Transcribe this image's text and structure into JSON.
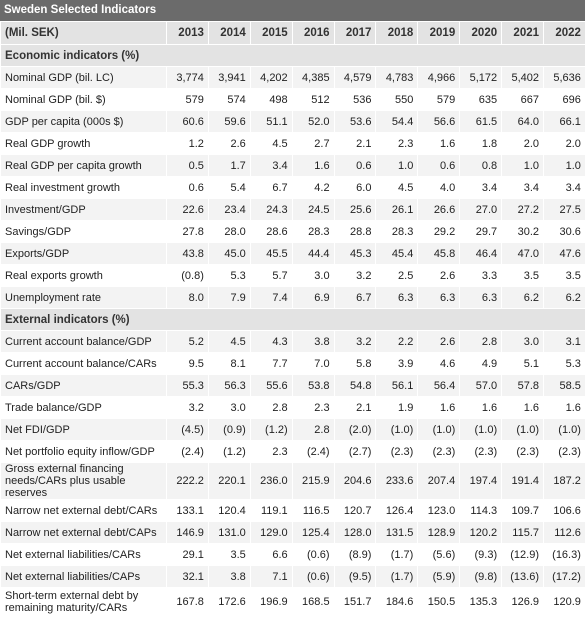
{
  "title": "Sweden Selected Indicators",
  "unit": "(Mil. SEK)",
  "years": [
    "2013",
    "2014",
    "2015",
    "2016",
    "2017",
    "2018",
    "2019",
    "2020",
    "2021",
    "2022"
  ],
  "sections": [
    {
      "name": "Economic indicators (%)",
      "rows": [
        {
          "label": "Nominal GDP (bil. LC)",
          "values": [
            "3,774",
            "3,941",
            "4,202",
            "4,385",
            "4,579",
            "4,783",
            "4,966",
            "5,172",
            "5,402",
            "5,636"
          ]
        },
        {
          "label": "Nominal GDP (bil. $)",
          "values": [
            "579",
            "574",
            "498",
            "512",
            "536",
            "550",
            "579",
            "635",
            "667",
            "696"
          ]
        },
        {
          "label": "GDP per capita (000s $)",
          "values": [
            "60.6",
            "59.6",
            "51.1",
            "52.0",
            "53.6",
            "54.4",
            "56.6",
            "61.5",
            "64.0",
            "66.1"
          ]
        },
        {
          "label": "Real GDP growth",
          "values": [
            "1.2",
            "2.6",
            "4.5",
            "2.7",
            "2.1",
            "2.3",
            "1.6",
            "1.8",
            "2.0",
            "2.0"
          ]
        },
        {
          "label": "Real GDP per capita growth",
          "values": [
            "0.5",
            "1.7",
            "3.4",
            "1.6",
            "0.6",
            "1.0",
            "0.6",
            "0.8",
            "1.0",
            "1.0"
          ]
        },
        {
          "label": "Real investment growth",
          "values": [
            "0.6",
            "5.4",
            "6.7",
            "4.2",
            "6.0",
            "4.5",
            "4.0",
            "3.4",
            "3.4",
            "3.4"
          ]
        },
        {
          "label": "Investment/GDP",
          "values": [
            "22.6",
            "23.4",
            "24.3",
            "24.5",
            "25.6",
            "26.1",
            "26.6",
            "27.0",
            "27.2",
            "27.5"
          ]
        },
        {
          "label": "Savings/GDP",
          "values": [
            "27.8",
            "28.0",
            "28.6",
            "28.3",
            "28.8",
            "28.3",
            "29.2",
            "29.7",
            "30.2",
            "30.6"
          ]
        },
        {
          "label": "Exports/GDP",
          "values": [
            "43.8",
            "45.0",
            "45.5",
            "44.4",
            "45.3",
            "45.4",
            "45.8",
            "46.4",
            "47.0",
            "47.6"
          ]
        },
        {
          "label": "Real exports growth",
          "values": [
            "(0.8)",
            "5.3",
            "5.7",
            "3.0",
            "3.2",
            "2.5",
            "2.6",
            "3.3",
            "3.5",
            "3.5"
          ]
        },
        {
          "label": "Unemployment rate",
          "values": [
            "8.0",
            "7.9",
            "7.4",
            "6.9",
            "6.7",
            "6.3",
            "6.3",
            "6.3",
            "6.2",
            "6.2"
          ]
        }
      ]
    },
    {
      "name": "External indicators (%)",
      "rows": [
        {
          "label": "Current account balance/GDP",
          "values": [
            "5.2",
            "4.5",
            "4.3",
            "3.8",
            "3.2",
            "2.2",
            "2.6",
            "2.8",
            "3.0",
            "3.1"
          ]
        },
        {
          "label": "Current account balance/CARs",
          "values": [
            "9.5",
            "8.1",
            "7.7",
            "7.0",
            "5.8",
            "3.9",
            "4.6",
            "4.9",
            "5.1",
            "5.3"
          ]
        },
        {
          "label": "CARs/GDP",
          "values": [
            "55.3",
            "56.3",
            "55.6",
            "53.8",
            "54.8",
            "56.1",
            "56.4",
            "57.0",
            "57.8",
            "58.5"
          ]
        },
        {
          "label": "Trade balance/GDP",
          "values": [
            "3.2",
            "3.0",
            "2.8",
            "2.3",
            "2.1",
            "1.9",
            "1.6",
            "1.6",
            "1.6",
            "1.6"
          ]
        },
        {
          "label": "Net FDI/GDP",
          "values": [
            "(4.5)",
            "(0.9)",
            "(1.2)",
            "2.8",
            "(2.0)",
            "(1.0)",
            "(1.0)",
            "(1.0)",
            "(1.0)",
            "(1.0)"
          ]
        },
        {
          "label": "Net portfolio equity inflow/GDP",
          "values": [
            "(2.4)",
            "(1.2)",
            "2.3",
            "(2.4)",
            "(2.7)",
            "(2.3)",
            "(2.3)",
            "(2.3)",
            "(2.3)",
            "(2.3)"
          ]
        },
        {
          "label": "Gross external financing needs/CARs plus usable reserves",
          "tall": true,
          "values": [
            "222.2",
            "220.1",
            "236.0",
            "215.9",
            "204.6",
            "233.6",
            "207.4",
            "197.4",
            "191.4",
            "187.2"
          ]
        },
        {
          "label": "Narrow net external debt/CARs",
          "values": [
            "133.1",
            "120.4",
            "119.1",
            "116.5",
            "120.7",
            "126.4",
            "123.0",
            "114.3",
            "109.7",
            "106.6"
          ]
        },
        {
          "label": "Narrow net external debt/CAPs",
          "values": [
            "146.9",
            "131.0",
            "129.0",
            "125.4",
            "128.0",
            "131.5",
            "128.9",
            "120.2",
            "115.7",
            "112.6"
          ]
        },
        {
          "label": "Net external liabilities/CARs",
          "values": [
            "29.1",
            "3.5",
            "6.6",
            "(0.6)",
            "(8.9)",
            "(1.7)",
            "(5.6)",
            "(9.3)",
            "(12.9)",
            "(16.3)"
          ]
        },
        {
          "label": "Net external liabilities/CAPs",
          "values": [
            "32.1",
            "3.8",
            "7.1",
            "(0.6)",
            "(9.5)",
            "(1.7)",
            "(5.9)",
            "(9.8)",
            "(13.6)",
            "(17.2)"
          ]
        },
        {
          "label": "Short-term external debt by remaining maturity/CARs",
          "tall": true,
          "values": [
            "167.8",
            "172.6",
            "196.9",
            "168.5",
            "151.7",
            "184.6",
            "150.5",
            "135.3",
            "126.9",
            "120.9"
          ]
        }
      ]
    }
  ]
}
